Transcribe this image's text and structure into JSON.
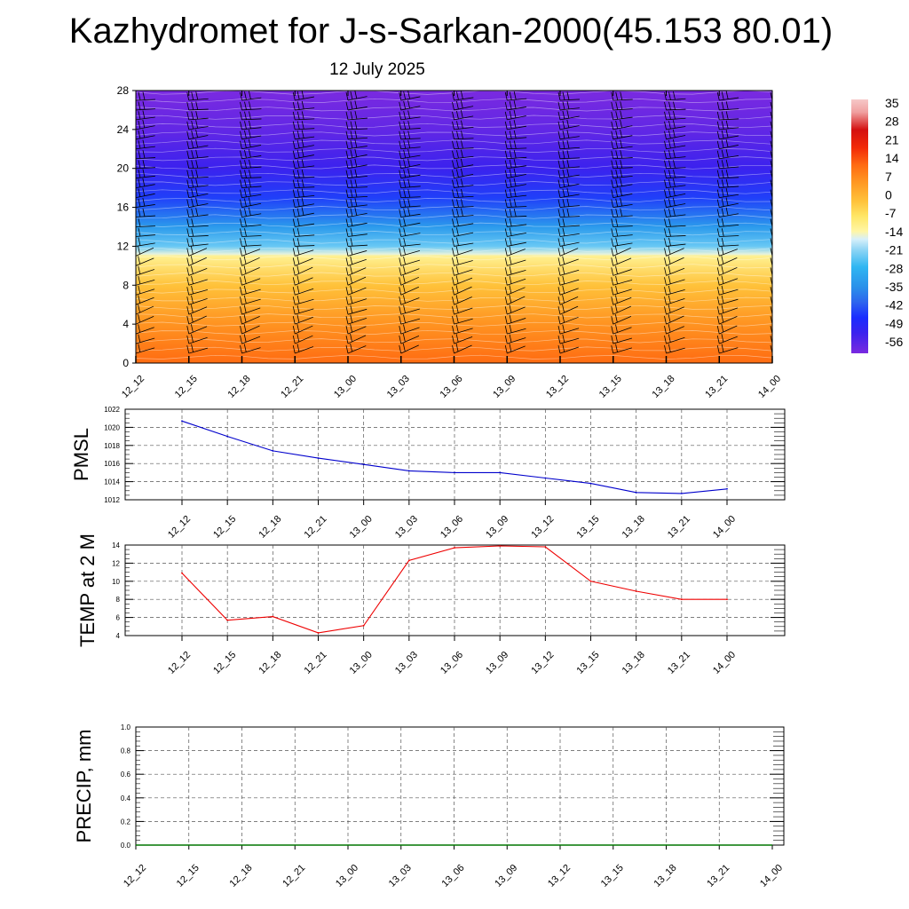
{
  "header": {
    "title": "Kazhydromet for J-s-Sarkan-2000(45.153 80.01)",
    "subtitle": "12 July 2025"
  },
  "colors": {
    "pmsl_line": "#0000cc",
    "temp_line": "#ee0000",
    "precip_line": "#007700",
    "grid": "#555555"
  },
  "chart_data": [
    {
      "id": "cross-section",
      "type": "heatmap",
      "title": "",
      "xlabel": "",
      "ylabel": "",
      "x_ticks": [
        "12_12",
        "12_15",
        "12_18",
        "12_21",
        "13_00",
        "13_03",
        "13_06",
        "13_09",
        "13_12",
        "13_15",
        "13_18",
        "13_21",
        "14_00"
      ],
      "y_ticks": [
        0,
        4,
        8,
        12,
        16,
        20,
        24,
        28
      ],
      "ylim": [
        0,
        28
      ],
      "colorbar": {
        "labels": [
          35,
          28,
          21,
          14,
          7,
          0,
          -7,
          -14,
          -21,
          -28,
          -35,
          -42,
          -49,
          -56
        ],
        "stops": [
          {
            "v": -60,
            "c": "#7a2ae0"
          },
          {
            "v": -52,
            "c": "#3b22ee"
          },
          {
            "v": -46,
            "c": "#1a2cff"
          },
          {
            "v": -40,
            "c": "#2d64ee"
          },
          {
            "v": -34,
            "c": "#2a90ea"
          },
          {
            "v": -26,
            "c": "#2fb6f2"
          },
          {
            "v": -19,
            "c": "#92d6f5"
          },
          {
            "v": -15,
            "c": "#d8f0fa"
          },
          {
            "v": -12,
            "c": "#fff6a6"
          },
          {
            "v": -6,
            "c": "#ffe666"
          },
          {
            "v": 0,
            "c": "#ffc23a"
          },
          {
            "v": 7,
            "c": "#ff9a24"
          },
          {
            "v": 14,
            "c": "#ff6c12"
          },
          {
            "v": 21,
            "c": "#f22a08"
          },
          {
            "v": 28,
            "c": "#d41010"
          },
          {
            "v": 35,
            "c": "#f0a0a0"
          }
        ]
      },
      "profile": [
        {
          "h": 0,
          "v": 14
        },
        {
          "h": 4,
          "v": 8
        },
        {
          "h": 8,
          "v": 0
        },
        {
          "h": 11,
          "v": -10
        },
        {
          "h": 11.2,
          "v": -14
        },
        {
          "h": 12,
          "v": -22
        },
        {
          "h": 14,
          "v": -32
        },
        {
          "h": 17,
          "v": -44
        },
        {
          "h": 20,
          "v": -52
        },
        {
          "h": 24,
          "v": -57
        },
        {
          "h": 28,
          "v": -60
        }
      ]
    },
    {
      "id": "pmsl",
      "type": "line",
      "ylabel": "PMSL",
      "x": [
        "12_12",
        "12_15",
        "12_18",
        "12_21",
        "13_00",
        "13_03",
        "13_06",
        "13_09",
        "13_12",
        "13_15",
        "13_18",
        "13_21",
        "14_00"
      ],
      "ylim": [
        1012,
        1022
      ],
      "y_ticks": [
        1012,
        1014,
        1016,
        1018,
        1020,
        1022
      ],
      "series": [
        {
          "values": [
            1020.7,
            1019.0,
            1017.4,
            1016.6,
            1015.9,
            1015.2,
            1015.0,
            1015.0,
            1014.4,
            1013.8,
            1012.8,
            1012.7,
            1013.2
          ]
        }
      ]
    },
    {
      "id": "temp",
      "type": "line",
      "ylabel": "TEMP at 2 M",
      "x": [
        "12_12",
        "12_15",
        "12_18",
        "12_21",
        "13_00",
        "13_03",
        "13_06",
        "13_09",
        "13_12",
        "13_15",
        "13_18",
        "13_21",
        "14_00"
      ],
      "ylim": [
        4,
        14
      ],
      "y_ticks": [
        4,
        6,
        8,
        10,
        12,
        14
      ],
      "series": [
        {
          "values": [
            10.9,
            5.7,
            6.1,
            4.3,
            5.1,
            12.3,
            13.7,
            13.9,
            13.8,
            10.0,
            8.9,
            8.0,
            8.0
          ]
        }
      ]
    },
    {
      "id": "precip",
      "type": "line",
      "ylabel": "PRECIP, mm",
      "x": [
        "12_12",
        "12_15",
        "12_18",
        "12_21",
        "13_00",
        "13_03",
        "13_06",
        "13_09",
        "13_12",
        "13_15",
        "13_18",
        "13_21",
        "14_00"
      ],
      "ylim": [
        0,
        1
      ],
      "y_ticks": [
        "0.0",
        "0.2",
        "0.4",
        "0.6",
        "0.8",
        "1.0"
      ],
      "series": [
        {
          "values": [
            0,
            0,
            0,
            0,
            0,
            0,
            0,
            0,
            0,
            0,
            0,
            0,
            0
          ]
        }
      ]
    }
  ]
}
